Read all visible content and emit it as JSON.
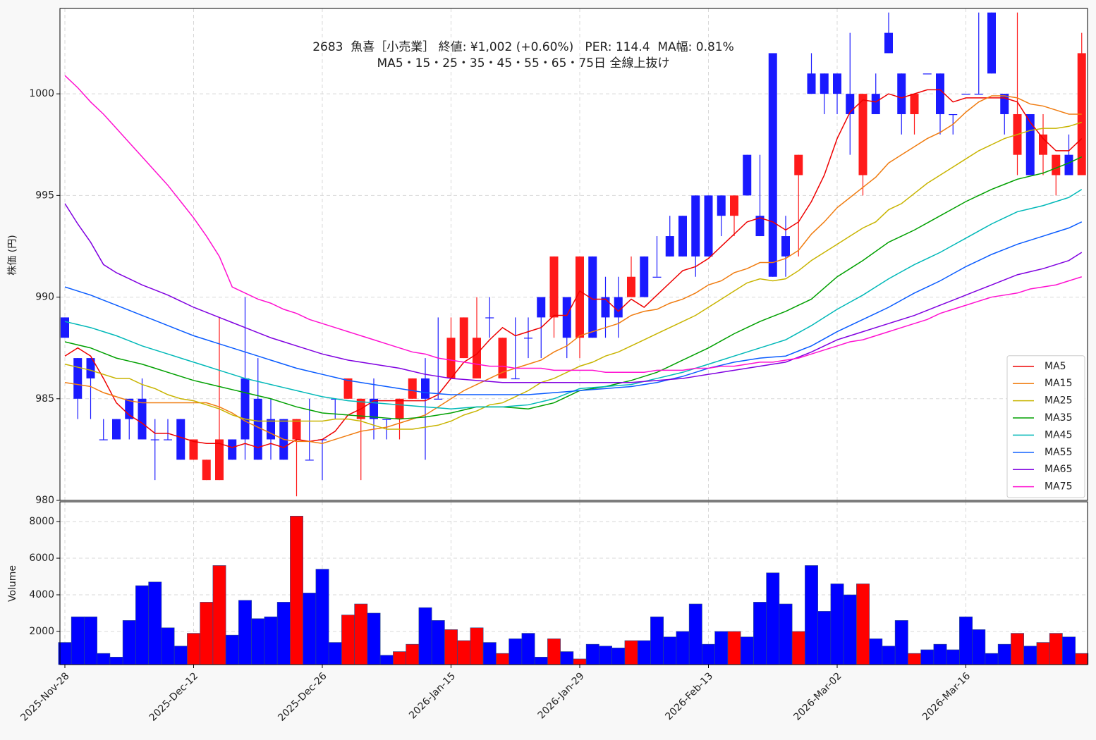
{
  "chart_data": {
    "type": "candlestick",
    "title": "2683  魚喜［小売業］ 終値: ¥1,002 (+0.60%)   PER: 114.4  MA幅: 0.81%",
    "subtitle": "MA5・15・25・35・45・55・65・75日 全線上抜け",
    "ylabel": "株価 (円)",
    "volume_label": "Volume",
    "up_color": "#ff1a1a",
    "down_color": "#1a1aff",
    "grid": true,
    "legend": "lower right",
    "categories": [
      "2025-Nov-28",
      null,
      null,
      null,
      null,
      null,
      null,
      null,
      null,
      null,
      "2025-Dec-12",
      null,
      null,
      null,
      null,
      null,
      null,
      null,
      null,
      null,
      "2025-Dec-26",
      null,
      null,
      null,
      null,
      null,
      null,
      null,
      null,
      null,
      "2026-Jan-15",
      null,
      null,
      null,
      null,
      null,
      null,
      null,
      null,
      null,
      "2026-Jan-29",
      null,
      null,
      null,
      null,
      null,
      null,
      null,
      null,
      null,
      "2026-Feb-13",
      null,
      null,
      null,
      null,
      null,
      null,
      null,
      null,
      null,
      "2026-Mar-02",
      null,
      null,
      null,
      null,
      null,
      null,
      null,
      null,
      null,
      "2026-Mar-16",
      null,
      null,
      null,
      null,
      null,
      null,
      null,
      null,
      null
    ],
    "open": [
      989,
      987,
      987,
      983,
      984,
      985,
      985,
      983,
      983,
      984,
      982,
      981,
      981,
      983,
      986,
      985,
      984,
      984,
      983,
      982,
      983,
      985,
      985,
      984,
      985,
      984,
      984,
      985,
      986,
      985,
      986,
      987,
      986,
      989,
      986,
      986,
      988,
      990,
      989,
      990,
      988,
      992,
      990,
      990,
      990,
      992,
      991,
      993,
      994,
      995,
      995,
      995,
      994,
      997,
      994,
      1002,
      993,
      996,
      1001,
      1001,
      1001,
      1000,
      996,
      1000,
      1003,
      1001,
      999,
      1001,
      1001,
      999,
      1000,
      1000,
      1004,
      1000,
      997,
      999,
      997,
      996,
      997,
      996
    ],
    "high": [
      989,
      987,
      987,
      984,
      984,
      985,
      986,
      984,
      984,
      984,
      983,
      982,
      989,
      983,
      990,
      987,
      985,
      984,
      984,
      985,
      983,
      985,
      986,
      985,
      986,
      984,
      985,
      986,
      987,
      989,
      989,
      989,
      990,
      990,
      988,
      989,
      989,
      990,
      992,
      990,
      992,
      992,
      991,
      991,
      992,
      992,
      993,
      994,
      994,
      995,
      995,
      995,
      995,
      997,
      997,
      1002,
      994,
      997,
      1002,
      1001,
      1001,
      1003,
      1000,
      1001,
      1004,
      1001,
      1000,
      1001,
      1001,
      999,
      1000,
      1004,
      1004,
      1000,
      1004,
      999,
      999,
      997,
      998,
      1003
    ],
    "low": [
      988,
      984,
      984,
      983,
      983,
      983,
      983,
      981,
      983,
      982,
      982,
      981,
      981,
      982,
      982,
      982,
      982,
      982,
      980.2,
      982,
      981,
      984,
      985,
      981,
      983,
      983,
      983,
      985,
      982,
      985,
      986,
      987,
      986,
      988,
      986,
      986,
      987,
      987,
      988,
      987,
      987,
      988,
      988,
      988,
      990,
      990,
      991,
      992,
      992,
      991,
      992,
      993,
      993,
      995,
      993,
      991,
      991,
      992,
      1000,
      999,
      999,
      997,
      995,
      999,
      1002,
      998,
      998,
      1001,
      998,
      998,
      1000,
      1000,
      1001,
      998,
      996,
      996,
      996,
      995,
      996,
      996
    ],
    "close": [
      988,
      985,
      986,
      983,
      983,
      984,
      983,
      983,
      983,
      982,
      983,
      982,
      983,
      982,
      983,
      982,
      983,
      982,
      984,
      982,
      983,
      985,
      986,
      985,
      984,
      984,
      985,
      986,
      985,
      985,
      988,
      989,
      988,
      989,
      988,
      986,
      988,
      989,
      992,
      988,
      992,
      988,
      989,
      989,
      991,
      990,
      991,
      992,
      992,
      992,
      992,
      994,
      995,
      995,
      993,
      991,
      992,
      997,
      1000,
      1000,
      1000,
      999,
      1000,
      999,
      1002,
      999,
      1000,
      1001,
      999,
      999,
      1000,
      1000,
      1001,
      999,
      999,
      996,
      998,
      997,
      996,
      1002
    ],
    "volume": [
      1400,
      2800,
      2800,
      800,
      600,
      2600,
      4500,
      4700,
      2200,
      1200,
      1900,
      3600,
      5600,
      1800,
      3700,
      2700,
      2800,
      3600,
      8300,
      4100,
      5400,
      1400,
      2900,
      3500,
      3000,
      700,
      900,
      1300,
      3300,
      2600,
      2100,
      1500,
      2200,
      1400,
      800,
      1600,
      1900,
      600,
      1600,
      900,
      500,
      1300,
      1200,
      1100,
      1500,
      1500,
      2800,
      1700,
      2000,
      3500,
      1300,
      2000,
      2000,
      1700,
      3600,
      5200,
      3500,
      2000,
      5600,
      3100,
      4600,
      4000,
      4600,
      1600,
      1200,
      2600,
      800,
      1000,
      1300,
      1000,
      2800,
      2100,
      800,
      1300,
      1900,
      1200,
      1400,
      1900,
      1700,
      800
    ],
    "ylim": [
      980,
      1004.2
    ],
    "yticks": [
      980,
      985,
      990,
      995,
      1000
    ],
    "vlim": [
      190,
      9080
    ],
    "vticks": [
      2000,
      4000,
      6000,
      8000
    ],
    "series": [
      {
        "name": "MA5",
        "color": "#ee0000",
        "values": [
          987.1,
          987.5,
          987.1,
          986,
          984.8,
          984.2,
          983.8,
          983.3,
          983.3,
          983.1,
          982.9,
          982.8,
          982.8,
          982.6,
          982.8,
          982.6,
          982.8,
          982.6,
          983,
          982.9,
          983,
          983.4,
          984.2,
          984.5,
          984.9,
          984.9,
          984.9,
          984.9,
          984.9,
          985.2,
          986,
          986.8,
          987.2,
          987.9,
          988.5,
          988.1,
          988.3,
          988.5,
          989.1,
          989.1,
          990.3,
          989.9,
          989.9,
          989.3,
          989.9,
          989.5,
          990.1,
          990.7,
          991.3,
          991.5,
          991.9,
          992.5,
          993.1,
          993.7,
          993.9,
          993.7,
          993.3,
          993.7,
          994.7,
          996,
          997.8,
          999.1,
          999.7,
          999.6,
          1000,
          999.8,
          1000,
          1000.2,
          1000.2,
          999.6,
          999.8,
          999.8,
          999.8,
          999.8,
          999.6,
          998.6,
          997.8,
          997.2,
          997.2,
          997.8
        ]
      },
      {
        "name": "MA15",
        "color": "#f07c10",
        "values": [
          985.8,
          985.7,
          985.6,
          985.3,
          985.1,
          984.9,
          984.8,
          984.8,
          984.8,
          984.8,
          984.8,
          984.8,
          984.6,
          984.3,
          983.9,
          983.6,
          983.3,
          983,
          982.9,
          982.9,
          982.8,
          983,
          983.2,
          983.4,
          983.5,
          983.6,
          983.8,
          984,
          984.2,
          984.6,
          985,
          985.4,
          985.7,
          986,
          986.3,
          986.5,
          986.7,
          986.9,
          987.3,
          987.6,
          988.1,
          988.3,
          988.5,
          988.7,
          989.1,
          989.3,
          989.4,
          989.7,
          989.9,
          990.2,
          990.6,
          990.8,
          991.2,
          991.4,
          991.7,
          991.7,
          991.9,
          992.3,
          993.1,
          993.7,
          994.4,
          994.9,
          995.4,
          995.9,
          996.6,
          997,
          997.4,
          997.8,
          998.1,
          998.5,
          999.1,
          999.6,
          999.9,
          999.9,
          999.8,
          999.5,
          999.4,
          999.2,
          999,
          999
        ]
      },
      {
        "name": "MA25",
        "color": "#c8b400",
        "values": [
          986.7,
          986.55,
          986.4,
          986.2,
          986,
          986,
          985.7,
          985.5,
          985.2,
          985,
          984.9,
          984.7,
          984.5,
          984.2,
          984,
          983.9,
          983.9,
          983.9,
          983.9,
          983.9,
          983.9,
          984,
          984,
          983.9,
          983.7,
          983.5,
          983.5,
          983.5,
          983.6,
          983.7,
          983.9,
          984.2,
          984.4,
          984.7,
          984.8,
          985.1,
          985.4,
          985.8,
          986,
          986.3,
          986.6,
          986.8,
          987.1,
          987.3,
          987.6,
          987.9,
          988.2,
          988.5,
          988.8,
          989.1,
          989.5,
          989.9,
          990.3,
          990.7,
          990.9,
          990.8,
          990.9,
          991.3,
          991.8,
          992.2,
          992.6,
          993,
          993.4,
          993.7,
          994.3,
          994.6,
          995.1,
          995.6,
          996,
          996.4,
          996.8,
          997.2,
          997.5,
          997.8,
          998,
          998.2,
          998.3,
          998.3,
          998.4,
          998.6
        ]
      },
      {
        "name": "MA35",
        "color": "#00a000",
        "values": [
          987.8,
          987.65,
          987.5,
          987.25,
          987,
          986.85,
          986.7,
          986.5,
          986.3,
          986.1,
          985.9,
          985.75,
          985.6,
          985.45,
          985.3,
          985.15,
          985,
          984.8,
          984.6,
          984.45,
          984.3,
          984.25,
          984.2,
          984.15,
          984.1,
          984.05,
          984,
          984.05,
          984.1,
          984.2,
          984.3,
          984.45,
          984.6,
          984.6,
          984.6,
          984.55,
          984.5,
          984.65,
          984.8,
          985.1,
          985.4,
          985.5,
          985.6,
          985.75,
          985.9,
          986.1,
          986.3,
          986.6,
          986.9,
          987.2,
          987.5,
          987.85,
          988.2,
          988.5,
          988.8,
          989.05,
          989.3,
          989.6,
          989.9,
          990.45,
          991,
          991.4,
          991.8,
          992.25,
          992.7,
          993,
          993.3,
          993.65,
          994,
          994.35,
          994.7,
          995,
          995.3,
          995.55,
          995.8,
          995.95,
          996.1,
          996.35,
          996.6,
          996.9
        ]
      },
      {
        "name": "MA45",
        "color": "#00b8b8",
        "values": [
          988.8,
          988.65,
          988.5,
          988.3,
          988.1,
          987.85,
          987.6,
          987.4,
          987.2,
          987,
          986.8,
          986.6,
          986.4,
          986.2,
          986,
          985.85,
          985.7,
          985.55,
          985.4,
          985.25,
          985.1,
          985,
          984.9,
          984.85,
          984.8,
          984.75,
          984.7,
          984.65,
          984.6,
          984.55,
          984.5,
          984.55,
          984.6,
          984.6,
          984.6,
          984.65,
          984.7,
          984.85,
          985,
          985.25,
          985.5,
          985.55,
          985.6,
          985.65,
          985.7,
          985.85,
          986,
          986.15,
          986.3,
          986.5,
          986.7,
          986.9,
          987.1,
          987.3,
          987.5,
          987.7,
          987.9,
          988.25,
          988.6,
          989,
          989.4,
          989.75,
          990.1,
          990.5,
          990.9,
          991.25,
          991.6,
          991.9,
          992.2,
          992.55,
          992.9,
          993.25,
          993.6,
          993.9,
          994.2,
          994.35,
          994.5,
          994.7,
          994.9,
          995.3
        ]
      },
      {
        "name": "MA55",
        "color": "#0a5cff",
        "values": [
          990.5,
          990.3,
          990.1,
          989.85,
          989.6,
          989.35,
          989.1,
          988.85,
          988.6,
          988.35,
          988.1,
          987.9,
          987.7,
          987.5,
          987.3,
          987.1,
          986.9,
          986.7,
          986.5,
          986.35,
          986.2,
          986.05,
          985.9,
          985.8,
          985.7,
          985.6,
          985.5,
          985.4,
          985.3,
          985.25,
          985.2,
          985.2,
          985.2,
          985.2,
          985.2,
          985.2,
          985.2,
          985.25,
          985.3,
          985.35,
          985.4,
          985.45,
          985.5,
          985.55,
          985.6,
          985.7,
          985.8,
          985.95,
          986.1,
          986.3,
          986.5,
          986.65,
          986.8,
          986.9,
          987,
          987.05,
          987.1,
          987.35,
          987.6,
          987.95,
          988.3,
          988.6,
          988.9,
          989.2,
          989.5,
          989.85,
          990.2,
          990.5,
          990.8,
          991.15,
          991.5,
          991.8,
          992.1,
          992.35,
          992.6,
          992.8,
          993,
          993.2,
          993.4,
          993.7
        ]
      },
      {
        "name": "MA65",
        "color": "#8000e0",
        "values": [
          994.6,
          993.6,
          992.7,
          991.6,
          991.2,
          990.9,
          990.6,
          990.35,
          990.1,
          989.8,
          989.5,
          989.25,
          989,
          988.75,
          988.5,
          988.25,
          988,
          987.8,
          987.6,
          987.4,
          987.2,
          987.05,
          986.9,
          986.8,
          986.7,
          986.6,
          986.5,
          986.35,
          986.2,
          986.1,
          986,
          985.95,
          985.9,
          985.85,
          985.8,
          985.8,
          985.8,
          985.8,
          985.8,
          985.8,
          985.8,
          985.8,
          985.8,
          985.8,
          985.8,
          985.85,
          985.9,
          985.95,
          986,
          986.1,
          986.2,
          986.3,
          986.4,
          986.5,
          986.6,
          986.7,
          986.8,
          987.05,
          987.3,
          987.6,
          987.9,
          988.1,
          988.3,
          988.5,
          988.7,
          988.9,
          989.1,
          989.35,
          989.6,
          989.85,
          990.1,
          990.35,
          990.6,
          990.85,
          991.1,
          991.25,
          991.4,
          991.6,
          991.8,
          992.2
        ]
      },
      {
        "name": "MA75",
        "color": "#ff10d0",
        "values": [
          1000.9,
          1000.3,
          999.6,
          999,
          998.3,
          997.6,
          996.9,
          996.2,
          995.5,
          994.7,
          993.9,
          993,
          992,
          990.5,
          990.2,
          989.9,
          989.7,
          989.4,
          989.2,
          988.9,
          988.7,
          988.5,
          988.3,
          988.1,
          987.9,
          987.7,
          987.5,
          987.3,
          987.2,
          987,
          986.9,
          986.8,
          986.7,
          986.6,
          986.6,
          986.5,
          986.5,
          986.5,
          986.4,
          986.4,
          986.4,
          986.4,
          986.3,
          986.3,
          986.3,
          986.3,
          986.4,
          986.4,
          986.4,
          986.5,
          986.5,
          986.6,
          986.6,
          986.7,
          986.8,
          986.8,
          986.9,
          987,
          987.2,
          987.4,
          987.6,
          987.8,
          987.9,
          988.1,
          988.3,
          988.5,
          988.7,
          988.9,
          989.2,
          989.4,
          989.6,
          989.8,
          990,
          990.1,
          990.2,
          990.4,
          990.5,
          990.6,
          990.8,
          991
        ]
      }
    ]
  }
}
